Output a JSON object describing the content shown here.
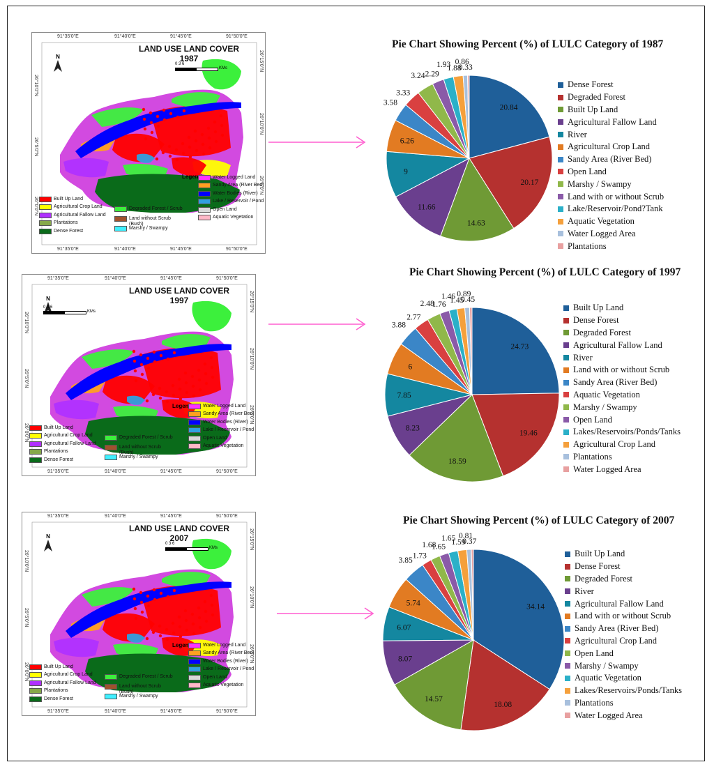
{
  "figure": {
    "arrow_color": "#ff5fd0"
  },
  "maps": [
    {
      "year_title": "LAND USE LAND COVER",
      "year": "1987",
      "top_coords": [
        "91°35'0\"E",
        "91°40'0\"E",
        "91°45'0\"E",
        "91°50'0\"E"
      ],
      "bottom_coords": [
        "91°35'0\"E",
        "91°40'0\"E",
        "91°45'0\"E",
        "91°50'0\"E"
      ],
      "left_coords": [
        "26°10'0\"N",
        "26°5'0\"N",
        "26°0'0\"N"
      ],
      "right_coords": [
        "26°15'0\"N",
        "26°10'0\"N",
        "26°5'0\"N"
      ],
      "scale_label": "0   3   6",
      "scale_unit": "KMs",
      "north": "N",
      "legend_title": "Legend"
    },
    {
      "year_title": "LAND USE LAND COVER",
      "year": "1997",
      "top_coords": [
        "91°35'0\"E",
        "91°40'0\"E",
        "91°45'0\"E",
        "91°50'0\"E"
      ],
      "bottom_coords": [
        "91°35'0\"E",
        "91°40'0\"E",
        "91°45'0\"E",
        "91°50'0\"E"
      ],
      "left_coords": [
        "26°10'0\"N",
        "26°5'0\"N",
        "26°0'0\"N"
      ],
      "right_coords": [
        "26°15'0\"N",
        "26°10'0\"N",
        "26°5'0\"N"
      ],
      "scale_label": "0   3   6",
      "scale_unit": "KMs",
      "north": "N",
      "legend_title": "Legend"
    },
    {
      "year_title": "LAND USE LAND COVER",
      "year": "2007",
      "top_coords": [
        "91°35'0\"E",
        "91°40'0\"E",
        "91°45'0\"E",
        "91°50'0\"E"
      ],
      "bottom_coords": [
        "91°35'0\"E",
        "91°40'0\"E",
        "91°45'0\"E",
        "91°50'0\"E"
      ],
      "left_coords": [
        "26°10'0\"N",
        "26°5'0\"N",
        "26°0'0\"N"
      ],
      "right_coords": [
        "26°15'0\"N",
        "26°10'0\"N",
        "26°5'0\"N"
      ],
      "scale_label": "0   3   6",
      "scale_unit": "KMs",
      "north": "N",
      "legend_title": "Legend"
    }
  ],
  "map_legend": [
    {
      "label": "Built Up Land",
      "color": "#ff0000"
    },
    {
      "label": "Agricultural Crop Land",
      "color": "#ffff00"
    },
    {
      "label": "Agricultural Fallow Land",
      "color": "#b030ff"
    },
    {
      "label": "Plantations",
      "color": "#86a84a"
    },
    {
      "label": "Dense Forest",
      "color": "#0a6b1a"
    },
    {
      "label": "Degraded Forest / Scrub",
      "color": "#3cf03c"
    },
    {
      "label": "Land without Scrub (Bush)",
      "color": "#a0522d"
    },
    {
      "label": "Marshy / Swampy",
      "color": "#40f0ff"
    },
    {
      "label": "Water Logged Land",
      "color": "#ff30ff"
    },
    {
      "label": "Sandy Area (River Bed)",
      "color": "#ffa020"
    },
    {
      "label": "Water Bodies (River)",
      "color": "#0000ff"
    },
    {
      "label": "Lake / Reservoir / Pond",
      "color": "#30a0e0"
    },
    {
      "label": "Open Land",
      "color": "#d8d8d8"
    },
    {
      "label": "Aquatic Vegetation",
      "color": "#ffb8c8"
    }
  ],
  "chart_data": [
    {
      "type": "pie",
      "title": "Pie Chart  Showing  Percent (%) of LULC Category of 1987",
      "categories": [
        "Dense Forest",
        "Degraded Forest",
        "Built Up Land",
        "Agricultural Fallow Land",
        "River",
        "Agricultural Crop Land",
        "Sandy Area (River Bed)",
        "Open Land",
        "Marshy / Swampy",
        "Land with or without Scrub",
        "Lake/Reservoir/Pond?Tank",
        "Aquatic Vegetation",
        "Water Logged Area",
        "Plantations"
      ],
      "values": [
        20.84,
        20.17,
        14.63,
        11.66,
        9,
        6.26,
        3.58,
        3.33,
        3.24,
        2.29,
        1.93,
        1.88,
        0.86,
        0.33
      ],
      "data_labels": [
        "20.84",
        "20.17",
        "14.63",
        "11.66",
        "9",
        "6.26",
        "3.58",
        "3.33",
        "3.24",
        "2.29",
        "1.93",
        "1.88",
        "0.86",
        "0.33"
      ]
    },
    {
      "type": "pie",
      "title": "Pie Chart  Showing  Percent (%) of LULC Category of 1997",
      "categories": [
        "Built Up Land",
        "Dense Forest",
        "Degraded Forest",
        "Agricultural Fallow Land",
        "River",
        "Land with or without Scrub",
        "Sandy Area (River Bed)",
        "Aquatic Vegetation",
        "Marshy / Swampy",
        "Open Land",
        "Lakes/Reservoirs/Ponds/Tanks",
        "Agricultural Crop Land",
        "Plantations",
        "Water Logged Area"
      ],
      "values": [
        24.73,
        19.46,
        18.59,
        8.23,
        7.85,
        6,
        3.88,
        2.77,
        2.48,
        1.76,
        1.46,
        1.45,
        0.89,
        0.45
      ],
      "data_labels": [
        "24.73",
        "19.46",
        "18.59",
        "8.23",
        "7.85",
        "6",
        "3.88",
        "2.77",
        "2.48",
        "1.76",
        "1.46",
        "1.45",
        "0.89",
        "0.45"
      ]
    },
    {
      "type": "pie",
      "title": "Pie Chart  Showing  Percent (%) of LULC Category of 2007",
      "categories": [
        "Built Up Land",
        "Dense Forest",
        "Degraded Forest",
        "River",
        "Agricultural Fallow Land",
        "Land with or without Scrub",
        "Sandy Area (River Bed)",
        "Agricultural Crop Land",
        "Open Land",
        "Marshy / Swampy",
        "Aquatic Vegetation",
        "Lakes/Reservoirs/Ponds/Tanks",
        "Plantations",
        "Water Logged Area"
      ],
      "values": [
        34.14,
        18.08,
        14.57,
        8.07,
        6.07,
        5.74,
        3.85,
        1.73,
        1.68,
        1.65,
        1.65,
        1.59,
        0.81,
        0.37
      ],
      "data_labels": [
        "34.14",
        "18.08",
        "14.57",
        "8.07",
        "6.07",
        "5.74",
        "3.85",
        "1.73",
        "1.68",
        "1.65",
        "1.65",
        "1.59",
        "0.81",
        "0.37"
      ]
    }
  ],
  "pie_colors": [
    "#1f5f99",
    "#b5312f",
    "#6f9a35",
    "#6a3f8e",
    "#1487a0",
    "#e27b22",
    "#3b86c7",
    "#d94040",
    "#90b84a",
    "#8a5aa8",
    "#2bb0c8",
    "#f5a03c",
    "#a8c0dd",
    "#e8a0a0"
  ]
}
